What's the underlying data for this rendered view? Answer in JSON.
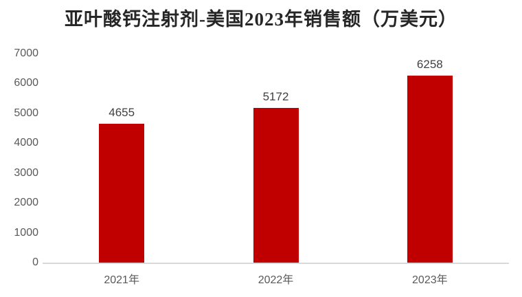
{
  "chart_data": {
    "type": "bar",
    "title": "亚叶酸钙注射剂-美国2023年销售额（万美元）",
    "categories": [
      "2021年",
      "2022年",
      "2023年"
    ],
    "values": [
      4655,
      5172,
      6258
    ],
    "xlabel": "",
    "ylabel": "",
    "ylim": [
      0,
      7000
    ],
    "ytick_step": 1000,
    "ytick_labels": [
      "0",
      "1000",
      "2000",
      "3000",
      "4000",
      "5000",
      "6000",
      "7000"
    ],
    "grid": false,
    "legend": "none",
    "data_labels_shown": true,
    "colors": {
      "bar": "#c00000",
      "title_text": "#262626",
      "tick_text": "#595959",
      "data_label_text": "#404040",
      "axis_line": "#d9d9d9",
      "background": "#ffffff"
    }
  }
}
